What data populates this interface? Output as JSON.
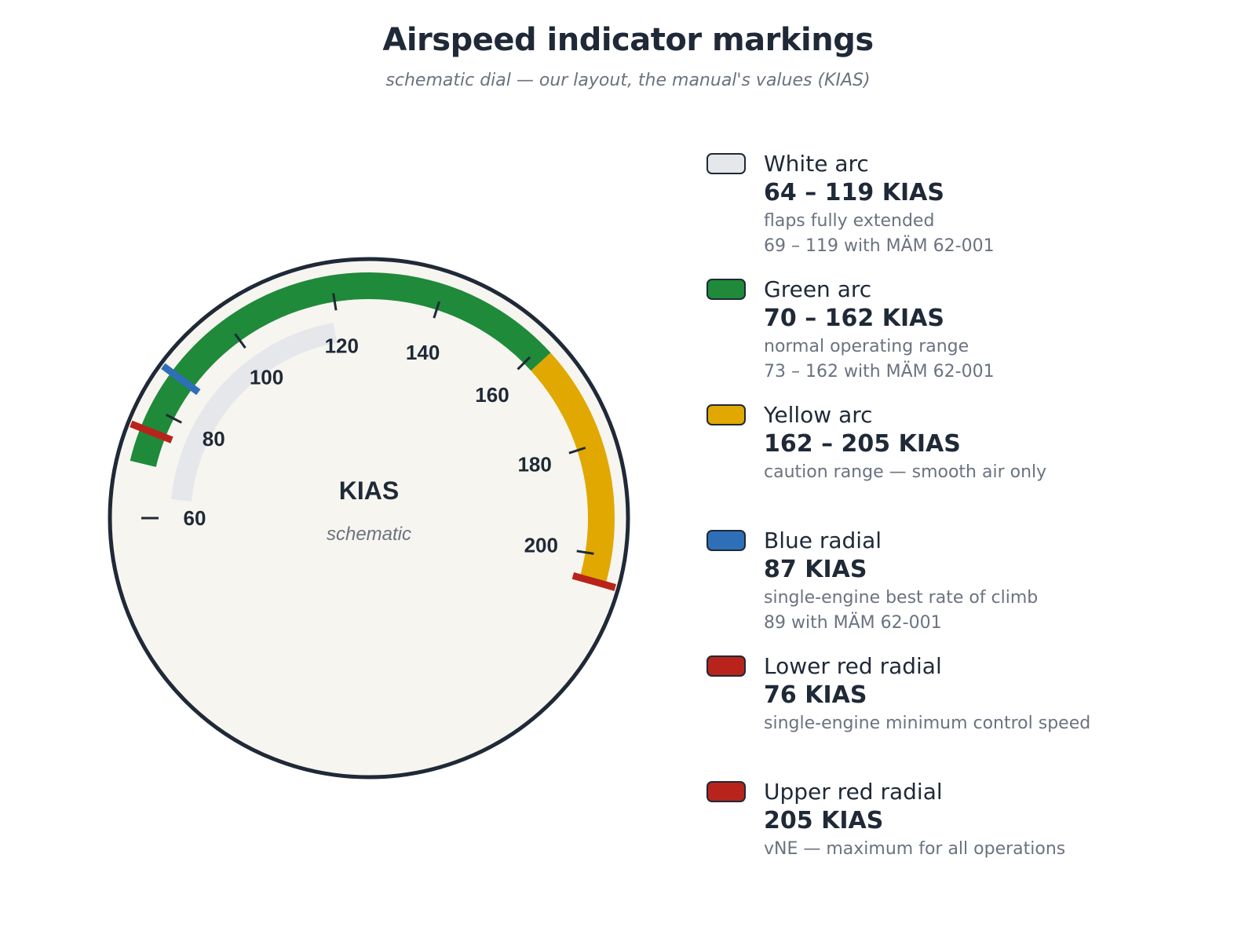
{
  "title": "Airspeed indicator markings",
  "subtitle": "schematic dial — our layout, the manual's values (KIAS)",
  "dial": {
    "center_label": "KIAS",
    "center_sublabel": "schematic",
    "scale_labels": [
      "60",
      "80",
      "100",
      "120",
      "140",
      "160",
      "180",
      "200"
    ],
    "scale_values": [
      60,
      80,
      100,
      120,
      140,
      160,
      180,
      200
    ],
    "face_color": "#f7f5f0",
    "rim_color": "#1f2937"
  },
  "markings": {
    "white_arc": {
      "from": 64,
      "to": 119,
      "color": "#e5e7eb"
    },
    "green_arc": {
      "from": 70,
      "to": 162,
      "color": "#1e8a3a"
    },
    "yellow_arc": {
      "from": 162,
      "to": 205,
      "color": "#e0a800"
    },
    "blue_radial": {
      "value": 87,
      "color": "#2f6fb7"
    },
    "lower_red_radial": {
      "value": 76,
      "color": "#b8241c"
    },
    "upper_red_radial": {
      "value": 205,
      "color": "#b8241c"
    }
  },
  "legend": [
    {
      "name": "White arc",
      "value": "64 – 119 KIAS",
      "desc1": "flaps fully extended",
      "desc2": "69 – 119 with MÄM 62-001",
      "color": "#e5e7eb"
    },
    {
      "name": "Green arc",
      "value": "70 – 162 KIAS",
      "desc1": "normal operating range",
      "desc2": "73 – 162 with MÄM 62-001",
      "color": "#1e8a3a"
    },
    {
      "name": "Yellow arc",
      "value": "162 – 205 KIAS",
      "desc1": "caution range — smooth air only",
      "desc2": "",
      "color": "#e0a800"
    },
    {
      "name": "Blue radial",
      "value": "87 KIAS",
      "desc1": "single-engine best rate of climb",
      "desc2": "89 with MÄM 62-001",
      "color": "#2f6fb7"
    },
    {
      "name": "Lower red radial",
      "value": "76 KIAS",
      "desc1": "single-engine minimum control speed",
      "desc2": "",
      "color": "#b8241c"
    },
    {
      "name": "Upper red radial",
      "value": "205 KIAS",
      "desc1": "vNE — maximum for all operations",
      "desc2": "",
      "color": "#b8241c"
    }
  ]
}
